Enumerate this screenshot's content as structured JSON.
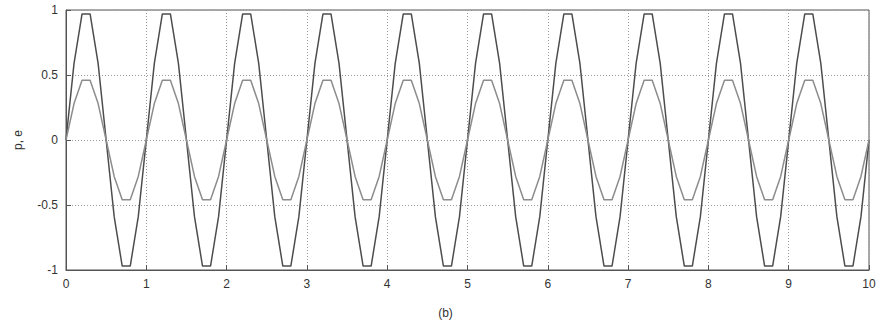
{
  "chart_data": {
    "type": "line",
    "y_label": "p, e",
    "caption": "(b)",
    "x": [
      0,
      0.1,
      0.2,
      0.3,
      0.4,
      0.5,
      0.6,
      0.7,
      0.8,
      0.9,
      1,
      1.1,
      1.2,
      1.3,
      1.4,
      1.5,
      1.6,
      1.7,
      1.8,
      1.9,
      2,
      2.1,
      2.2,
      2.3,
      2.4,
      2.5,
      2.6,
      2.7,
      2.8,
      2.9,
      3,
      3.1,
      3.2,
      3.3,
      3.4,
      3.5,
      3.6,
      3.7,
      3.8,
      3.9,
      4,
      4.1,
      4.2,
      4.3,
      4.4,
      4.5,
      4.6,
      4.7,
      4.8,
      4.9,
      5,
      5.1,
      5.2,
      5.3,
      5.4,
      5.5,
      5.6,
      5.7,
      5.8,
      5.9,
      6,
      6.1,
      6.2,
      6.3,
      6.4,
      6.5,
      6.6,
      6.7,
      6.8,
      6.9,
      7,
      7.1,
      7.2,
      7.3,
      7.4,
      7.5,
      7.6,
      7.7,
      7.8,
      7.9,
      8,
      8.1,
      8.2,
      8.3,
      8.4,
      8.5,
      8.6,
      8.7,
      8.8,
      8.9,
      9,
      9.1,
      9.2,
      9.3,
      9.4,
      9.5,
      9.6,
      9.7,
      9.8,
      9.9,
      10
    ],
    "series": [
      {
        "color": "#4d4d4d",
        "line_style": "solid",
        "marker": "none",
        "values": [
          0,
          0.59,
          0.97,
          0.97,
          0.59,
          0,
          -0.59,
          -0.97,
          -0.97,
          -0.59,
          0,
          0.59,
          0.97,
          0.97,
          0.59,
          0,
          -0.59,
          -0.97,
          -0.97,
          -0.59,
          0,
          0.59,
          0.97,
          0.97,
          0.59,
          0,
          -0.59,
          -0.97,
          -0.97,
          -0.59,
          0,
          0.59,
          0.97,
          0.97,
          0.59,
          0,
          -0.59,
          -0.97,
          -0.97,
          -0.59,
          0,
          0.59,
          0.97,
          0.97,
          0.59,
          0,
          -0.59,
          -0.97,
          -0.97,
          -0.59,
          0,
          0.59,
          0.97,
          0.97,
          0.59,
          0,
          -0.59,
          -0.97,
          -0.97,
          -0.59,
          0,
          0.59,
          0.97,
          0.97,
          0.59,
          0,
          -0.59,
          -0.97,
          -0.97,
          -0.59,
          0,
          0.59,
          0.97,
          0.97,
          0.59,
          0,
          -0.59,
          -0.97,
          -0.97,
          -0.59,
          0,
          0.59,
          0.97,
          0.97,
          0.59,
          0,
          -0.59,
          -0.97,
          -0.97,
          -0.59,
          0,
          0.59,
          0.97,
          0.97,
          0.59,
          0,
          -0.59,
          -0.97,
          -0.97,
          -0.59,
          0
        ]
      },
      {
        "color": "#8c8c8c",
        "line_style": "solid",
        "marker": "none",
        "values": [
          0,
          0.28,
          0.46,
          0.46,
          0.28,
          0,
          -0.28,
          -0.46,
          -0.46,
          -0.28,
          0,
          0.28,
          0.46,
          0.46,
          0.28,
          0,
          -0.28,
          -0.46,
          -0.46,
          -0.28,
          0,
          0.28,
          0.46,
          0.46,
          0.28,
          0,
          -0.28,
          -0.46,
          -0.46,
          -0.28,
          0,
          0.28,
          0.46,
          0.46,
          0.28,
          0,
          -0.28,
          -0.46,
          -0.46,
          -0.28,
          0,
          0.28,
          0.46,
          0.46,
          0.28,
          0,
          -0.28,
          -0.46,
          -0.46,
          -0.28,
          0,
          0.28,
          0.46,
          0.46,
          0.28,
          0,
          -0.28,
          -0.46,
          -0.46,
          -0.28,
          0,
          0.28,
          0.46,
          0.46,
          0.28,
          0,
          -0.28,
          -0.46,
          -0.46,
          -0.28,
          0,
          0.28,
          0.46,
          0.46,
          0.28,
          0,
          -0.28,
          -0.46,
          -0.46,
          -0.28,
          0,
          0.28,
          0.46,
          0.46,
          0.28,
          0,
          -0.28,
          -0.46,
          -0.46,
          -0.28,
          0,
          0.28,
          0.46,
          0.46,
          0.28,
          0,
          -0.28,
          -0.46,
          -0.46,
          -0.28,
          0
        ]
      }
    ],
    "xlim": [
      0,
      10
    ],
    "xticks": [
      0,
      1,
      2,
      3,
      4,
      5,
      6,
      7,
      8,
      9,
      10
    ],
    "ylim": [
      -1,
      1
    ],
    "yticks": [
      -1,
      -0.5,
      0,
      0.5,
      1
    ],
    "grid": true
  }
}
